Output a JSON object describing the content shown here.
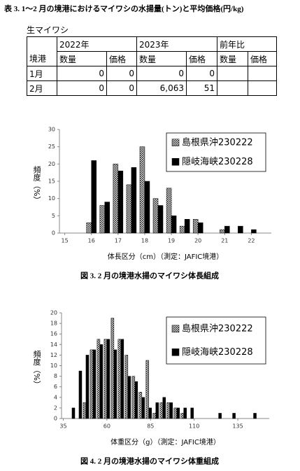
{
  "table_title": "表 3. 1～2 月の境港におけるマイワシの水揚量(トン)と平均価格(円/kg)",
  "table": {
    "label": "生マイワシ",
    "years": [
      "2022年",
      "2023年",
      "前年比"
    ],
    "row_header": "境港",
    "columns": [
      "数量",
      "価格",
      "数量",
      "価格",
      "数量",
      "価格"
    ],
    "rows": [
      {
        "month": "1月",
        "cells": [
          0,
          0,
          0,
          0,
          null,
          null
        ]
      },
      {
        "month": "2月",
        "cells": [
          0,
          0,
          {
            "value": 6063,
            "label": "6,063"
          },
          51,
          null,
          null
        ]
      }
    ]
  },
  "chart_data": [
    {
      "type": "bar",
      "caption": "図 3.  2 月の境港水揚のマイワシ体長組成",
      "xlabel": "体長区分（cm）（測定：JAFIC境港）",
      "ylabel": "頻度（%）",
      "x": [
        16,
        16.5,
        17,
        17.5,
        18,
        18.5,
        19,
        19.5,
        20,
        20.5,
        21,
        21.5,
        22
      ],
      "series": [
        {
          "name": "島根県沖230222",
          "color": "#000000",
          "pattern": "crosshatch",
          "values": [
            3,
            8,
            20,
            14,
            25,
            10,
            13,
            2,
            4,
            0,
            1,
            0,
            0
          ]
        },
        {
          "name": "隠岐海峡230228",
          "color": "#000000",
          "pattern": "solid",
          "values": [
            21,
            9,
            18,
            19,
            15,
            8,
            5,
            4,
            3,
            0,
            2,
            2,
            1
          ]
        }
      ],
      "xlim": [
        14.8,
        22.75
      ],
      "xticks": [
        15,
        16,
        17,
        18,
        19,
        20,
        21,
        22
      ],
      "ylim": [
        0,
        30
      ],
      "yticks": [
        0,
        5,
        10,
        15,
        20,
        25,
        30
      ],
      "legend": "upper right"
    },
    {
      "type": "bar",
      "caption": "図 4.  2 月の境港水揚のマイワシ体重組成",
      "xlabel": "体重区分（g）（測定：JAFIC境港）",
      "ylabel": "頻度（%）",
      "x": [
        40,
        44,
        48,
        52,
        56,
        60,
        64,
        68,
        72,
        76,
        80,
        84,
        88,
        92,
        96,
        100,
        104,
        108,
        124,
        132,
        144
      ],
      "series": [
        {
          "name": "島根県沖230222",
          "color": "#000000",
          "pattern": "crosshatch",
          "values": [
            0,
            0,
            3,
            13,
            15,
            15,
            19,
            15,
            12,
            8,
            5,
            11,
            1,
            3,
            3,
            2,
            1,
            0,
            0,
            0,
            0
          ]
        },
        {
          "name": "隠岐海峡230228",
          "color": "#000000",
          "pattern": "solid",
          "values": [
            2,
            9,
            12,
            13,
            14,
            15,
            13,
            15,
            8,
            7,
            4,
            2,
            3,
            4,
            3,
            2,
            2,
            2,
            1,
            1,
            1
          ]
        }
      ],
      "xlim": [
        34,
        153
      ],
      "xticks": [
        35,
        60,
        85,
        110,
        135
      ],
      "ylim": [
        0,
        20
      ],
      "yticks": [
        0,
        2,
        4,
        6,
        8,
        10,
        12,
        14,
        16,
        18,
        20
      ],
      "legend": "upper right"
    }
  ]
}
